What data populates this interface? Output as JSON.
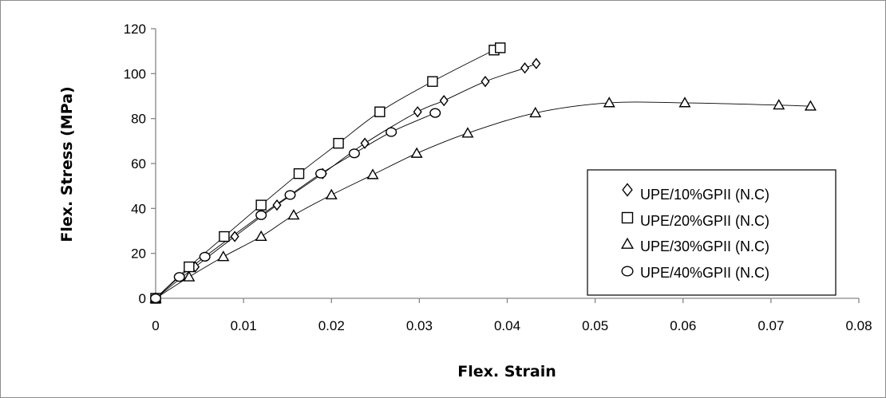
{
  "chart_data": {
    "type": "scatter",
    "xlabel": "Flex. Strain",
    "ylabel": "Flex. Stress (MPa)",
    "xlim": [
      0,
      0.08
    ],
    "ylim": [
      0,
      120
    ],
    "x_ticks": [
      "0",
      "0.01",
      "0.02",
      "0.03",
      "0.04",
      "0.05",
      "0.06",
      "0.07",
      "0.08"
    ],
    "y_ticks": [
      "0",
      "20",
      "40",
      "60",
      "80",
      "100",
      "120"
    ],
    "grid": false,
    "legend_position": "right",
    "series": [
      {
        "name": "UPE/10%GPII (N.C)",
        "marker": "diamond",
        "x": [
          0,
          0.0045,
          0.009,
          0.0138,
          0.019,
          0.0238,
          0.0298,
          0.0328,
          0.0375,
          0.042,
          0.0433
        ],
        "y": [
          0,
          14,
          27.5,
          41.5,
          55.5,
          69,
          83,
          88,
          96.5,
          102.5,
          104.5
        ]
      },
      {
        "name": "UPE/20%GPII (N.C)",
        "marker": "square",
        "x": [
          0,
          0.0038,
          0.0078,
          0.012,
          0.0163,
          0.0208,
          0.0255,
          0.0315,
          0.0385,
          0.0392
        ],
        "y": [
          0,
          14,
          27.5,
          41.5,
          55.5,
          69,
          83,
          96.5,
          110.5,
          111.5
        ]
      },
      {
        "name": "UPE/30%GPII (N.C)",
        "marker": "triangle",
        "x": [
          0,
          0.0038,
          0.0077,
          0.012,
          0.0157,
          0.02,
          0.0247,
          0.0297,
          0.0355,
          0.0432,
          0.0516,
          0.0602,
          0.0709,
          0.0745
        ],
        "y": [
          0,
          9.5,
          18.5,
          27.5,
          37,
          46,
          55,
          64.5,
          73.5,
          82.5,
          87,
          87,
          86,
          85.5
        ]
      },
      {
        "name": "UPE/40%GPII (N.C)",
        "marker": "circle",
        "x": [
          0,
          0.0027,
          0.0056,
          0.012,
          0.0153,
          0.0188,
          0.0226,
          0.0268,
          0.0318
        ],
        "y": [
          0,
          9.5,
          18.5,
          37,
          46,
          55.5,
          64.5,
          74,
          82.5
        ]
      }
    ]
  }
}
